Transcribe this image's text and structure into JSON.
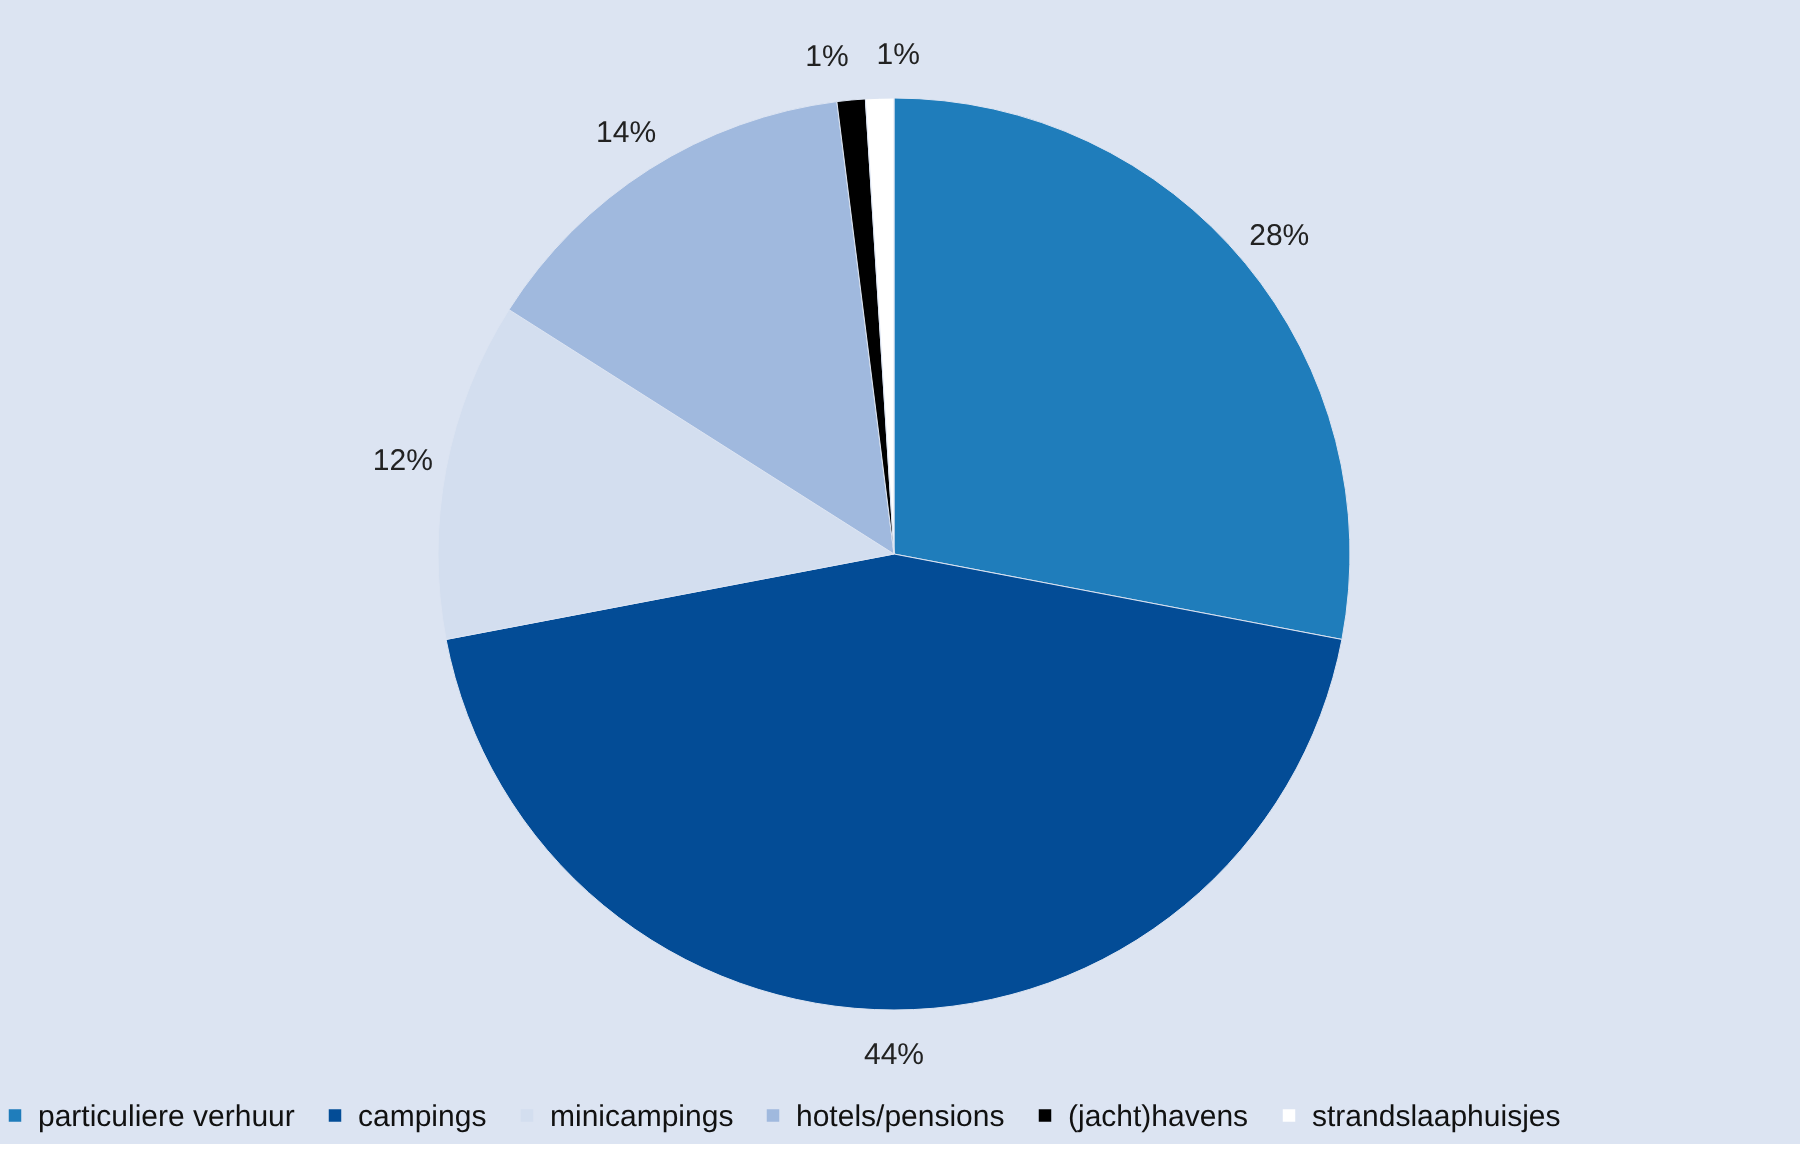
{
  "chart_data": {
    "type": "pie",
    "categories": [
      "particuliere verhuur",
      "campings",
      "minicampings",
      "hotels/pensions",
      "(jacht)havens",
      "strandslaaphuisjes"
    ],
    "values": [
      28,
      44,
      12,
      14,
      1,
      1
    ],
    "colors": [
      "#1f7dbb",
      "#034c96",
      "#d3deef",
      "#a0b9de",
      "#000000",
      "#ffffff"
    ],
    "value_labels": [
      "28%",
      "44%",
      "12%",
      "14%",
      "1%",
      "1%"
    ],
    "legend": "bottom"
  }
}
